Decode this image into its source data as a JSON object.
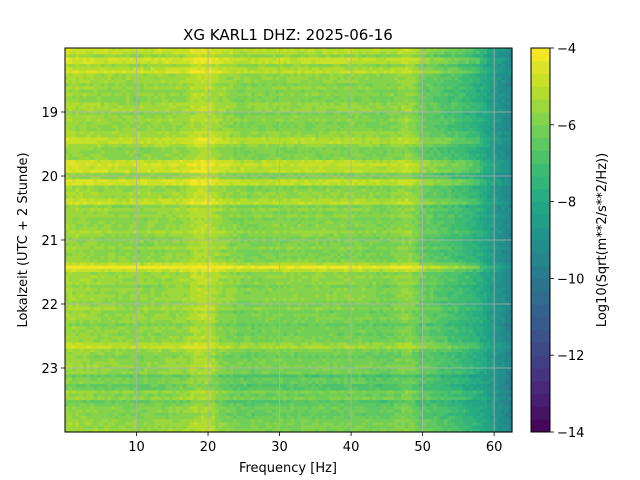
{
  "chart_data": {
    "type": "heatmap",
    "title": "XG KARL1  DHZ: 2025-06-16",
    "xlabel": "Frequency [Hz]",
    "ylabel": "Lokalzeit (UTC + 2 Stunde)",
    "xlim": [
      0,
      62.5
    ],
    "ylim": [
      24.0,
      18.0
    ],
    "x_ticks": [
      10,
      20,
      30,
      40,
      50,
      60
    ],
    "y_ticks": [
      19,
      20,
      21,
      22,
      23
    ],
    "colorbar": {
      "label": "Log10(Sqrt(m**2/s**2/Hz))",
      "range": [
        -14,
        -4
      ],
      "ticks": [
        -14,
        -12,
        -10,
        -8,
        -6,
        -4
      ],
      "colormap": "viridis",
      "levels": 30
    },
    "grid": true,
    "frequency_profile_hz": [
      0,
      5,
      10,
      15,
      17,
      18,
      20,
      22,
      25,
      30,
      35,
      40,
      45,
      48,
      50,
      52,
      55,
      58,
      60,
      62.5
    ],
    "frequency_profile_value": [
      -5.4,
      -5.6,
      -5.7,
      -5.6,
      -5.5,
      -5.2,
      -5.1,
      -5.6,
      -5.9,
      -5.8,
      -5.8,
      -5.8,
      -6.0,
      -5.6,
      -6.3,
      -6.6,
      -7.0,
      -7.7,
      -8.6,
      -9.6
    ],
    "loud_bands_hours": [
      18.05,
      18.2,
      18.35,
      19.45,
      19.8,
      19.9,
      20.1,
      20.4,
      21.4,
      21.45,
      22.65
    ],
    "quiet_bands_hours": [
      23.15,
      23.3,
      23.55
    ]
  }
}
